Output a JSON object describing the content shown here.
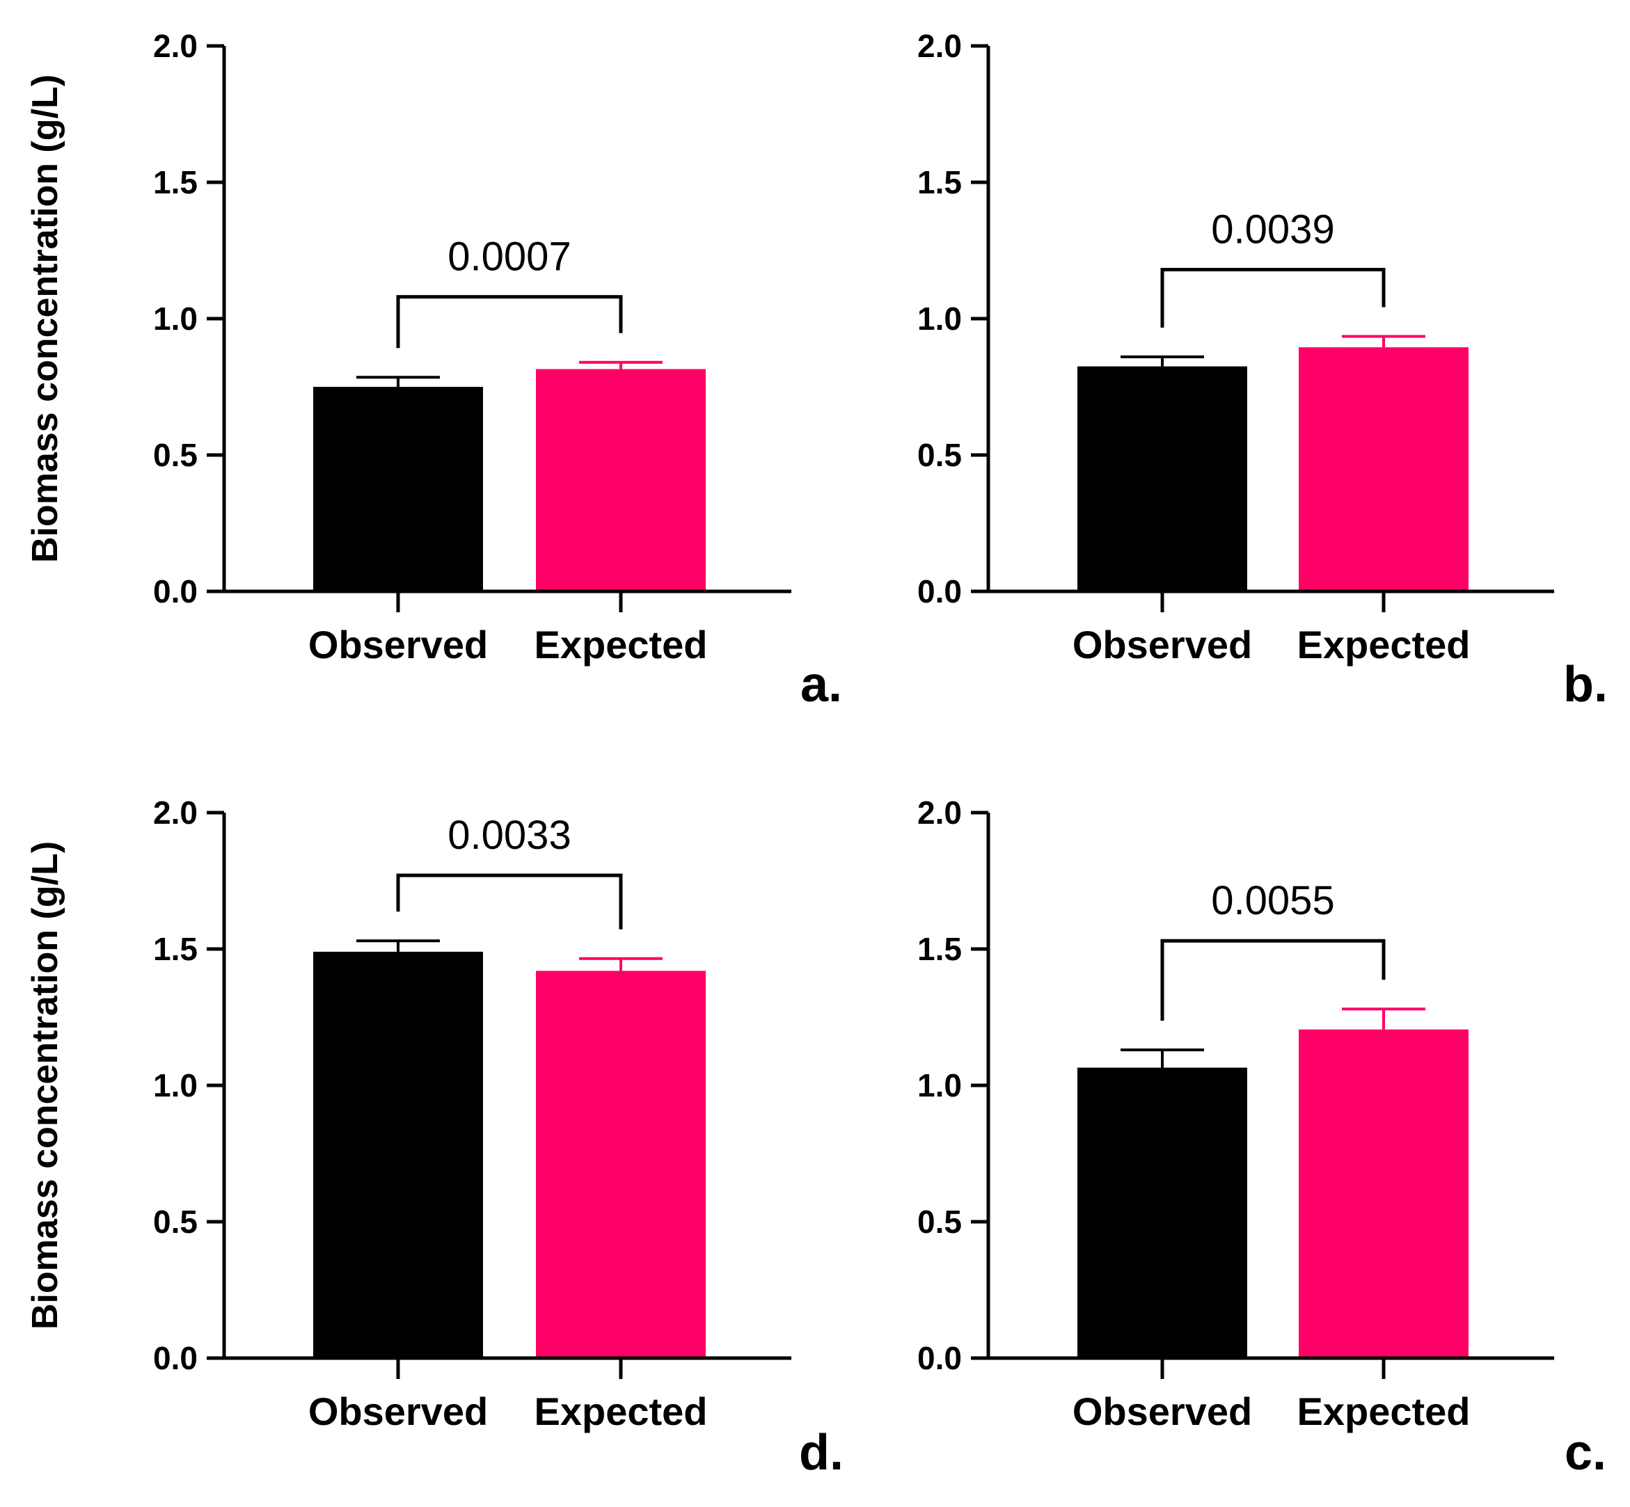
{
  "colors": {
    "observed": "#000000",
    "expected": "#ff0066",
    "axis": "#000000"
  },
  "chart_data": [
    {
      "type": "bar",
      "panel": "a.",
      "categories": [
        "Observed",
        "Expected"
      ],
      "values": [
        0.75,
        0.815
      ],
      "errors": [
        0.035,
        0.025
      ],
      "ylabel": "Biomass concentration (g/L)",
      "ylim": [
        0,
        2
      ],
      "yticks": [
        "0.0",
        "0.5",
        "1.0",
        "1.5",
        "2.0"
      ],
      "p_value": "0.0007",
      "bracket_level": 1.08
    },
    {
      "type": "bar",
      "panel": "b.",
      "categories": [
        "Observed",
        "Expected"
      ],
      "values": [
        0.825,
        0.895
      ],
      "errors": [
        0.035,
        0.04
      ],
      "ylabel": "",
      "ylim": [
        0,
        2
      ],
      "yticks": [
        "0.0",
        "0.5",
        "1.0",
        "1.5",
        "2.0"
      ],
      "p_value": "0.0039",
      "bracket_level": 1.18
    },
    {
      "type": "bar",
      "panel": "d.",
      "categories": [
        "Observed",
        "Expected"
      ],
      "values": [
        1.49,
        1.42
      ],
      "errors": [
        0.04,
        0.045
      ],
      "ylabel": "Biomass concentration (g/L)",
      "ylim": [
        0,
        2
      ],
      "yticks": [
        "0.0",
        "0.5",
        "1.0",
        "1.5",
        "2.0"
      ],
      "p_value": "0.0033",
      "bracket_level": 1.77
    },
    {
      "type": "bar",
      "panel": "c.",
      "categories": [
        "Observed",
        "Expected"
      ],
      "values": [
        1.065,
        1.205
      ],
      "errors": [
        0.065,
        0.075
      ],
      "ylabel": "",
      "ylim": [
        0,
        2
      ],
      "yticks": [
        "0.0",
        "0.5",
        "1.0",
        "1.5",
        "2.0"
      ],
      "p_value": "0.0055",
      "bracket_level": 1.53
    }
  ]
}
